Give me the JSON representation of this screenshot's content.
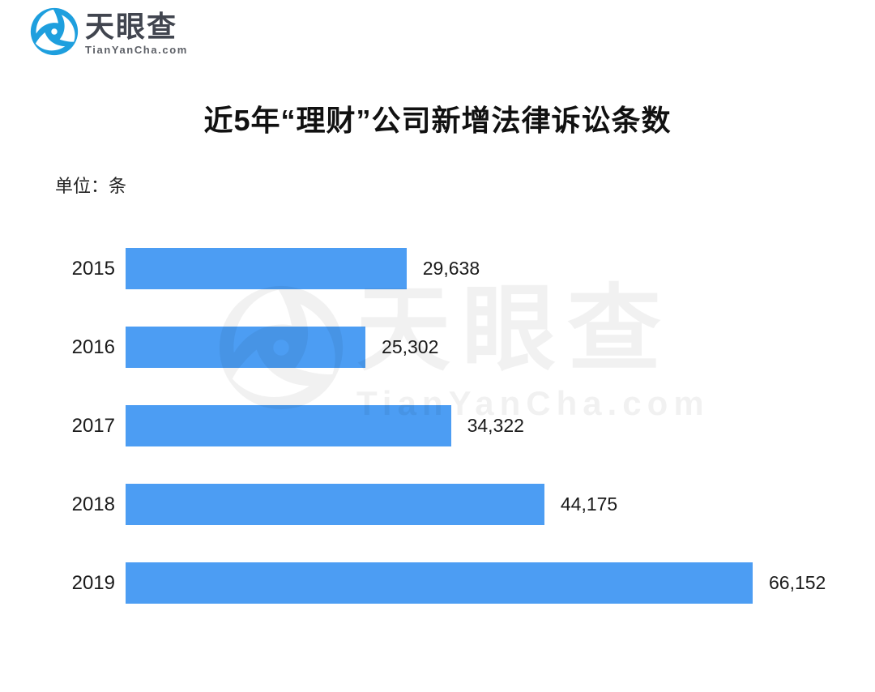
{
  "logo": {
    "brand": "天眼查",
    "domain": "TianYanCha.com"
  },
  "watermark": {
    "brand": "天眼查",
    "domain": "TianYanCha.com"
  },
  "colors": {
    "bar": "#4C9DF3",
    "logo_blue": "#1E9FDE",
    "logo_text": "#41454F",
    "logo_domain": "#5C5F66",
    "text": "#1A1A1A",
    "background": "#FFFFFF"
  },
  "chart_data": {
    "type": "bar",
    "orientation": "horizontal",
    "title": "近5年“理财”公司新增法律诉讼条数",
    "unit": "单位：条",
    "categories": [
      "2015",
      "2016",
      "2017",
      "2018",
      "2019"
    ],
    "values": [
      29638,
      25302,
      34322,
      44175,
      66152
    ],
    "value_labels": [
      "29,638",
      "25,302",
      "34,322",
      "44,175",
      "66,152"
    ],
    "xlabel": "",
    "ylabel": "",
    "xlim": [
      0,
      66152
    ],
    "grid": false,
    "legend": "none",
    "bar_label_position": "right-of-bar"
  }
}
